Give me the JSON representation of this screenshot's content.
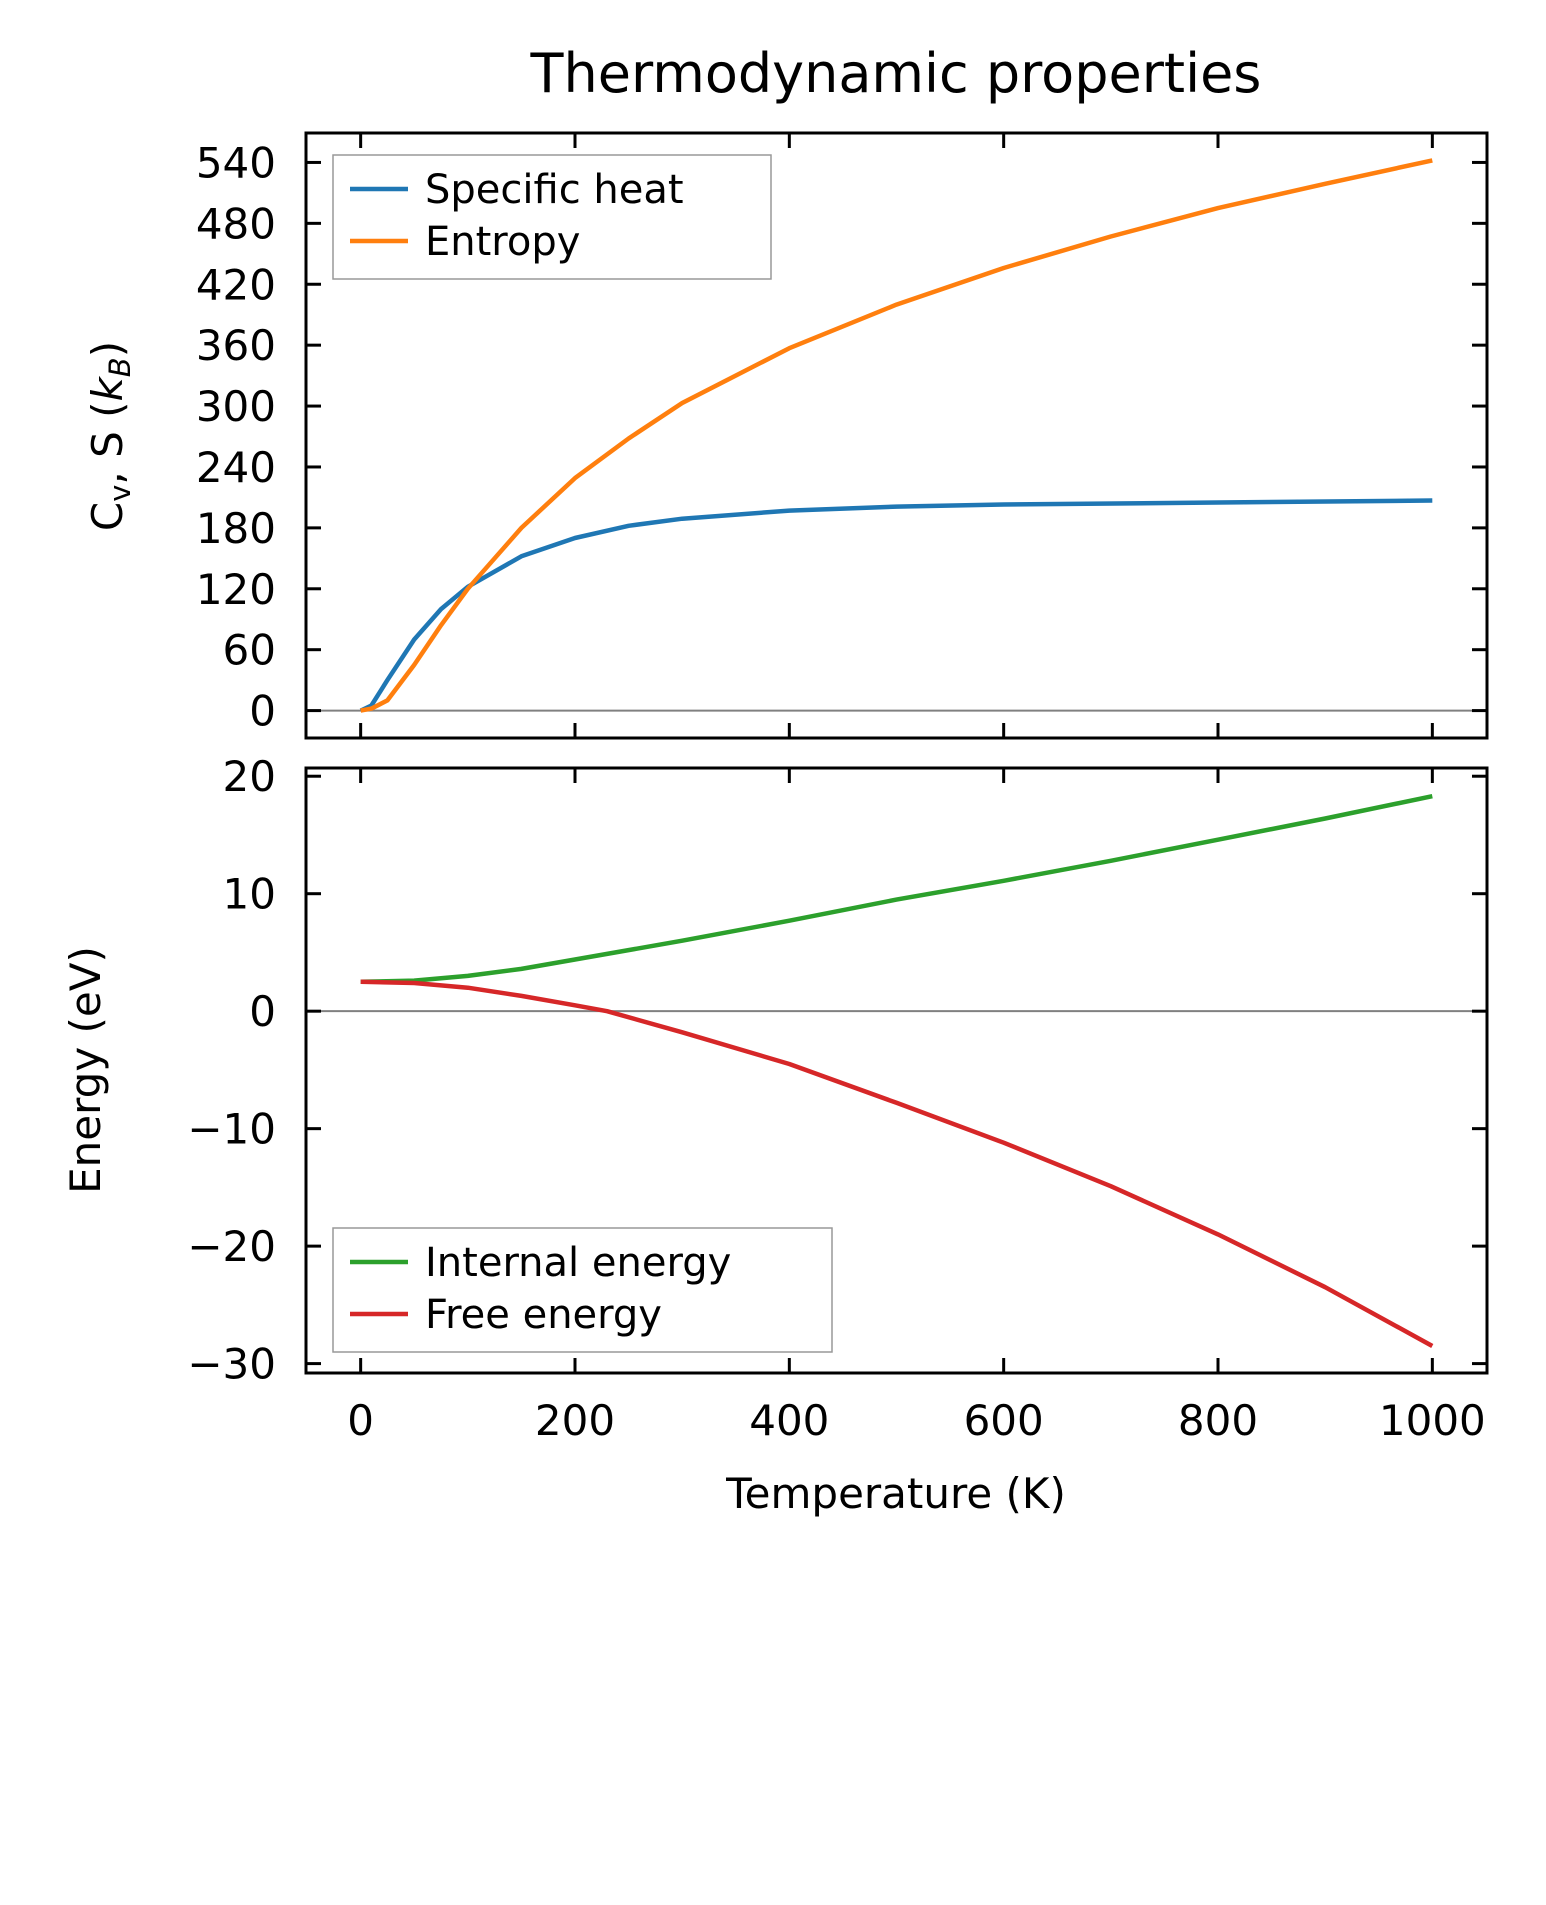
{
  "title": "Thermodynamic properties",
  "chart_data": [
    {
      "type": "line",
      "ylabel_main": "C",
      "ylabel_sub": "v",
      "ylabel_rest": ", S (",
      "ylabel_k": "k",
      "ylabel_ksub": "B",
      "ylabel_close": ")",
      "xlim": [
        -51,
        1051
      ],
      "ylim": [
        -27,
        569
      ],
      "yticks": [
        0,
        60,
        120,
        180,
        240,
        300,
        360,
        420,
        480,
        540
      ],
      "ytick_labels": [
        "0",
        "60",
        "120",
        "180",
        "240",
        "300",
        "360",
        "420",
        "480",
        "540"
      ],
      "legend_position": "top-left",
      "series": [
        {
          "name": "Specific heat",
          "color": "#1f77b4",
          "x": [
            0,
            10,
            25,
            50,
            75,
            100,
            150,
            200,
            250,
            300,
            400,
            500,
            600,
            800,
            1000
          ],
          "y": [
            0,
            5,
            30,
            70,
            100,
            122,
            152,
            170,
            182,
            189,
            197,
            201,
            203,
            205,
            207
          ]
        },
        {
          "name": "Entropy",
          "color": "#ff7f0e",
          "x": [
            0,
            10,
            25,
            50,
            75,
            100,
            150,
            200,
            250,
            300,
            400,
            500,
            600,
            700,
            800,
            900,
            1000
          ],
          "y": [
            0,
            2,
            10,
            45,
            84,
            120,
            180,
            229,
            268,
            303,
            357,
            400,
            436,
            467,
            495,
            519,
            542
          ]
        }
      ]
    },
    {
      "type": "line",
      "ylabel": "Energy (eV)",
      "xlabel": "Temperature (K)",
      "xlim": [
        -51,
        1051
      ],
      "ylim": [
        -30.8,
        20.7
      ],
      "xticks": [
        0,
        200,
        400,
        600,
        800,
        1000
      ],
      "xtick_labels": [
        "0",
        "200",
        "400",
        "600",
        "800",
        "1000"
      ],
      "yticks": [
        20,
        10,
        0,
        -10,
        -20,
        -30
      ],
      "ytick_labels": [
        "20",
        "10",
        "0",
        "−10",
        "−20",
        "−30"
      ],
      "legend_position": "bottom-left",
      "series": [
        {
          "name": "Internal energy",
          "color": "#2ca02c",
          "x": [
            0,
            50,
            100,
            150,
            200,
            300,
            400,
            500,
            600,
            700,
            800,
            900,
            1000
          ],
          "y": [
            2.5,
            2.6,
            3.0,
            3.6,
            4.4,
            6.0,
            7.7,
            9.5,
            11.1,
            12.8,
            14.6,
            16.4,
            18.3
          ]
        },
        {
          "name": "Free energy",
          "color": "#d62728",
          "x": [
            0,
            50,
            100,
            150,
            200,
            230,
            300,
            400,
            500,
            600,
            700,
            800,
            900,
            1000
          ],
          "y": [
            2.5,
            2.4,
            2.0,
            1.3,
            0.5,
            0.0,
            -1.8,
            -4.5,
            -7.8,
            -11.2,
            -14.9,
            -19.0,
            -23.5,
            -28.5
          ]
        }
      ]
    }
  ]
}
